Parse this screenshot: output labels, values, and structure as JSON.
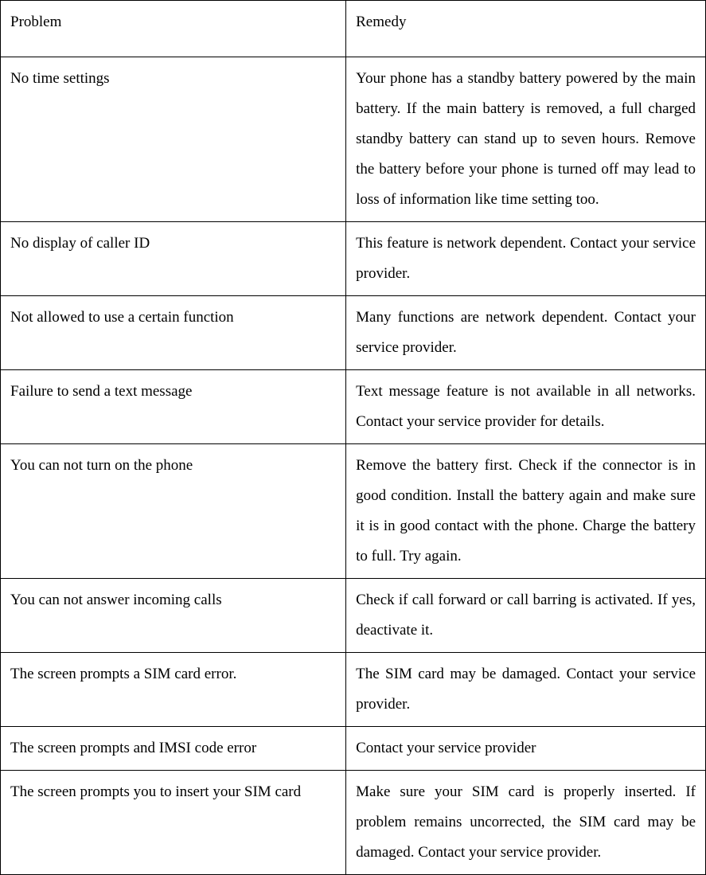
{
  "table": {
    "header": {
      "problem": "Problem",
      "remedy": "Remedy"
    },
    "rows": [
      {
        "problem": "No time settings",
        "remedy": "Your phone has a standby battery powered by the main battery. If the main battery is removed, a full charged standby battery can stand up to seven hours. Remove the battery before your phone is turned off may lead to loss of information like time setting too."
      },
      {
        "problem": "No display of caller ID",
        "remedy": "This feature is network dependent. Contact your service provider."
      },
      {
        "problem": "Not allowed to use a certain function",
        "remedy": "Many functions are network dependent. Contact your service provider."
      },
      {
        "problem": "Failure to send a text message",
        "remedy": "Text message feature is not available in all networks. Contact your service provider for details."
      },
      {
        "problem": "You can not turn on the phone",
        "remedy": "Remove the battery first. Check if the connector is in good condition. Install the battery again and make sure it is in good contact with the phone. Charge the battery to full. Try again."
      },
      {
        "problem": "You can not answer incoming calls",
        "remedy": "Check if call forward or call barring is activated. If yes, deactivate it."
      },
      {
        "problem": "The screen prompts a SIM card error.",
        "remedy": "The SIM card may be damaged. Contact your service provider."
      },
      {
        "problem": "The screen prompts and IMSI code error",
        "remedy": "Contact your service provider"
      },
      {
        "problem": "The screen prompts you to insert your SIM card",
        "remedy": "Make sure your SIM card is properly inserted. If problem remains uncorrected, the SIM card may be damaged. Contact your service provider."
      }
    ],
    "columns": [
      "problem",
      "remedy"
    ],
    "column_widths": [
      "49%",
      "51%"
    ],
    "border_color": "#000000",
    "background_color": "#ffffff",
    "text_color": "#000000",
    "font_family": "Times New Roman",
    "font_size_pt": 14,
    "line_height": 2.0,
    "remedy_text_align": "justify"
  }
}
